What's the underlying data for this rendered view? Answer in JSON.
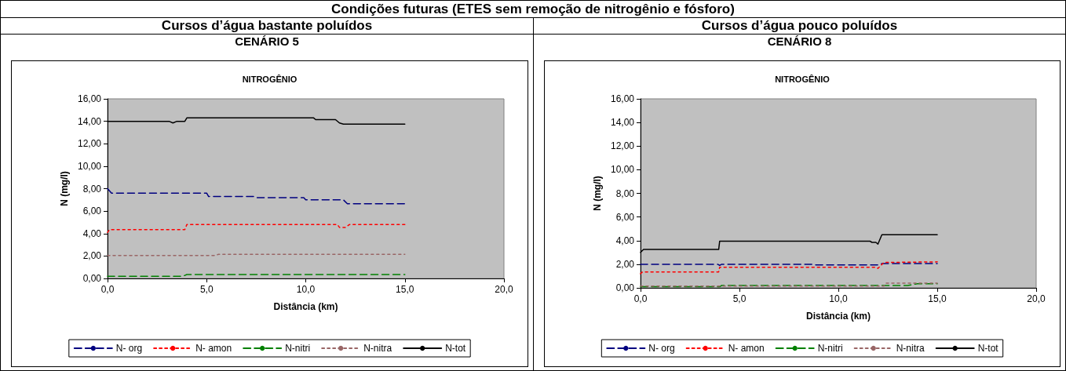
{
  "chart_data": [
    {
      "type": "line",
      "title": "NITROGÊNIO",
      "annotations": [
        "Condições futuras (ETES sem remoção de nitrogênio e fósforo)",
        "Cursos d’água bastante poluídos",
        "CENÁRIO 5"
      ],
      "xlabel": "Distância (km)",
      "ylabel": "N (mg/l)",
      "xlim": [
        0,
        20
      ],
      "xticks": [
        {
          "value": 0,
          "label": "0,0"
        },
        {
          "value": 5,
          "label": "5,0"
        },
        {
          "value": 10,
          "label": "10,0"
        },
        {
          "value": 15,
          "label": "15,0"
        },
        {
          "value": 20,
          "label": "20,0"
        }
      ],
      "ylim": [
        0,
        16
      ],
      "yticks": [
        {
          "value": 0,
          "label": "0,00"
        },
        {
          "value": 2,
          "label": "2,00"
        },
        {
          "value": 4,
          "label": "4,00"
        },
        {
          "value": 6,
          "label": "6,00"
        },
        {
          "value": 8,
          "label": "8,00"
        },
        {
          "value": 10,
          "label": "10,00"
        },
        {
          "value": 12,
          "label": "12,00"
        },
        {
          "value": 14,
          "label": "14,00"
        },
        {
          "value": 16,
          "label": "16,00"
        }
      ],
      "grid": false,
      "legend": "bottom",
      "marker": "none",
      "series": [
        {
          "name": "N- org",
          "color": "#000080",
          "line_style": "dashed",
          "x": [
            0,
            0.2,
            5.0,
            5.1,
            7.4,
            7.5,
            9.9,
            10.0,
            11.9,
            12.1,
            15
          ],
          "values": [
            8.0,
            7.6,
            7.6,
            7.3,
            7.3,
            7.2,
            7.2,
            7.0,
            7.0,
            6.65,
            6.65
          ]
        },
        {
          "name": "N- amon",
          "color": "#ff0000",
          "line_style": "dotted",
          "x": [
            0,
            0.1,
            3.9,
            4.0,
            11.6,
            11.7,
            12.0,
            12.2,
            15
          ],
          "values": [
            4.1,
            4.35,
            4.35,
            4.8,
            4.8,
            4.55,
            4.55,
            4.8,
            4.8
          ]
        },
        {
          "name": "N-nitri",
          "color": "#008000",
          "line_style": "dashed",
          "x": [
            0,
            3.8,
            4.0,
            15
          ],
          "values": [
            0.2,
            0.2,
            0.35,
            0.35
          ]
        },
        {
          "name": "N-nitra",
          "color": "#996666",
          "line_style": "dotted",
          "x": [
            0,
            5.4,
            5.6,
            15
          ],
          "values": [
            2.05,
            2.05,
            2.15,
            2.15
          ]
        },
        {
          "name": "N-tot",
          "color": "#000000",
          "line_style": "solid",
          "x": [
            0,
            3.1,
            3.3,
            3.5,
            3.9,
            4.0,
            10.4,
            10.5,
            11.5,
            11.7,
            11.9,
            15
          ],
          "values": [
            14.0,
            14.0,
            13.85,
            14.0,
            14.0,
            14.3,
            14.3,
            14.15,
            14.15,
            13.85,
            13.75,
            13.75
          ]
        }
      ]
    },
    {
      "type": "line",
      "title": "NITROGÊNIO",
      "annotations": [
        "Cursos d’água pouco poluídos",
        "CENÁRIO 8"
      ],
      "xlabel": "Distância (km)",
      "ylabel": "N (mg/l)",
      "xlim": [
        0,
        20
      ],
      "xticks": [
        {
          "value": 0,
          "label": "0,0"
        },
        {
          "value": 5,
          "label": "5,0"
        },
        {
          "value": 10,
          "label": "10,0"
        },
        {
          "value": 15,
          "label": "15,0"
        },
        {
          "value": 20,
          "label": "20,0"
        }
      ],
      "ylim": [
        0,
        16
      ],
      "yticks": [
        {
          "value": 0,
          "label": "0,00"
        },
        {
          "value": 2,
          "label": "2,00"
        },
        {
          "value": 4,
          "label": "4,00"
        },
        {
          "value": 6,
          "label": "6,00"
        },
        {
          "value": 8,
          "label": "8,00"
        },
        {
          "value": 10,
          "label": "10,00"
        },
        {
          "value": 12,
          "label": "12,00"
        },
        {
          "value": 14,
          "label": "14,00"
        },
        {
          "value": 16,
          "label": "16,00"
        }
      ],
      "grid": false,
      "legend": "bottom",
      "marker": "none",
      "series": [
        {
          "name": "N- org",
          "color": "#000080",
          "line_style": "dashed",
          "x": [
            0,
            3.9,
            4.0,
            4.1,
            8.7,
            8.8,
            12.0,
            12.2,
            15
          ],
          "values": [
            2.0,
            2.0,
            1.9,
            2.0,
            2.0,
            1.95,
            1.95,
            2.05,
            2.05
          ]
        },
        {
          "name": "N- amon",
          "color": "#ff0000",
          "line_style": "dotted",
          "x": [
            0,
            0.1,
            3.95,
            4.0,
            11.9,
            12.0,
            12.3,
            15
          ],
          "values": [
            1.2,
            1.35,
            1.35,
            1.75,
            1.75,
            1.65,
            2.15,
            2.2
          ]
        },
        {
          "name": "N-nitri",
          "color": "#008000",
          "line_style": "dashed",
          "x": [
            0,
            4.0,
            4.1,
            13.5,
            14.0,
            15
          ],
          "values": [
            0.1,
            0.1,
            0.2,
            0.2,
            0.35,
            0.35
          ]
        },
        {
          "name": "N-nitra",
          "color": "#996666",
          "line_style": "dotted",
          "x": [
            0,
            12.3,
            12.4,
            15
          ],
          "values": [
            0.15,
            0.15,
            0.4,
            0.4
          ]
        },
        {
          "name": "N-tot",
          "color": "#000000",
          "line_style": "solid",
          "x": [
            0,
            0.15,
            3.95,
            4.0,
            11.6,
            11.7,
            11.9,
            12.0,
            12.2,
            15
          ],
          "values": [
            3.0,
            3.25,
            3.25,
            3.95,
            3.95,
            3.85,
            3.85,
            3.7,
            4.5,
            4.5
          ]
        }
      ]
    }
  ]
}
